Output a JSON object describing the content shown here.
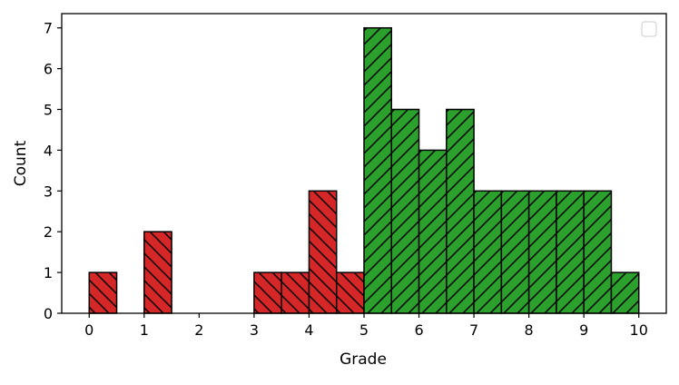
{
  "chart_data": {
    "type": "bar",
    "title": "",
    "xlabel": "Grade",
    "ylabel": "Count",
    "xlim": [
      -0.5,
      10.5
    ],
    "ylim": [
      0,
      7.35
    ],
    "x_ticks": [
      0,
      1,
      2,
      3,
      4,
      5,
      6,
      7,
      8,
      9,
      10
    ],
    "y_ticks": [
      0,
      1,
      2,
      3,
      4,
      5,
      6,
      7
    ],
    "x_tick_labels": [
      "0",
      "1",
      "2",
      "3",
      "4",
      "5",
      "6",
      "7",
      "8",
      "9",
      "10"
    ],
    "y_tick_labels": [
      "0",
      "1",
      "2",
      "3",
      "4",
      "5",
      "6",
      "7"
    ],
    "bin_width": 0.5,
    "bins": [
      0,
      0.5,
      1,
      1.5,
      2,
      2.5,
      3,
      3.5,
      4,
      4.5,
      5,
      5.5,
      6,
      6.5,
      7,
      7.5,
      8,
      8.5,
      9,
      9.5
    ],
    "values": [
      1,
      0,
      2,
      0,
      0,
      0,
      1,
      1,
      3,
      1,
      7,
      5,
      4,
      5,
      3,
      3,
      3,
      3,
      3,
      1
    ],
    "grid": false,
    "legend": "top-right (empty)",
    "colors": {
      "fail": "#d62728",
      "pass": "#2ca02c",
      "edge": "#000000"
    },
    "hatch": {
      "fail": "backslash",
      "pass": "forward-slash"
    },
    "pass_threshold": 5
  }
}
